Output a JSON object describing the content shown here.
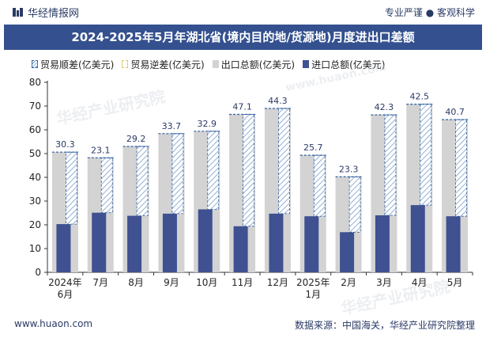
{
  "header": {
    "brand": "华经情报网",
    "slogan": "专业严谨 ● 客观科学"
  },
  "title": "2024-2025年5月年湖北省(境内目的地/货源地)月度进出口差额",
  "legend": {
    "surplus": "贸易顺差(亿美元)",
    "deficit": "贸易逆差(亿美元)",
    "export": "出口总额(亿美元)",
    "import": "进口总额(亿美元)"
  },
  "footer": {
    "website": "www.huaon.com",
    "source": "数据来源：中国海关，华经产业研究院整理"
  },
  "watermark": {
    "text": "华经产业研究院",
    "url": "www.huaon.com"
  },
  "colors": {
    "title_bg": "#34508f",
    "export": "#d3d3d3",
    "import": "#3f5190",
    "surplus_border": "#2f5fa0",
    "deficit_border": "#e3c75a"
  },
  "chart_data": {
    "type": "bar",
    "categories": [
      "2024年\n6月",
      "7月",
      "8月",
      "9月",
      "10月",
      "11月",
      "12月",
      "2025年\n1月",
      "2月",
      "3月",
      "4月",
      "5月"
    ],
    "ylim": [
      0,
      80
    ],
    "yticks": [
      0,
      10,
      20,
      30,
      40,
      50,
      60,
      70,
      80
    ],
    "series": [
      {
        "name": "出口总额(亿美元)",
        "values": [
          50.6,
          48.2,
          53.0,
          58.4,
          59.4,
          66.5,
          69.0,
          49.3,
          40.2,
          66.3,
          70.8,
          64.3
        ]
      },
      {
        "name": "进口总额(亿美元)",
        "values": [
          20.3,
          25.1,
          23.8,
          24.7,
          26.5,
          19.4,
          24.7,
          23.6,
          16.9,
          24.0,
          28.3,
          23.6
        ]
      },
      {
        "name": "贸易顺差(亿美元)",
        "values": [
          30.3,
          23.1,
          29.2,
          33.7,
          32.9,
          47.1,
          44.3,
          25.7,
          23.3,
          42.3,
          42.5,
          40.7
        ]
      },
      {
        "name": "贸易逆差(亿美元)",
        "values": [
          0,
          0,
          0,
          0,
          0,
          0,
          0,
          0,
          0,
          0,
          0,
          0
        ]
      }
    ],
    "grid": false,
    "legend_position": "top"
  }
}
